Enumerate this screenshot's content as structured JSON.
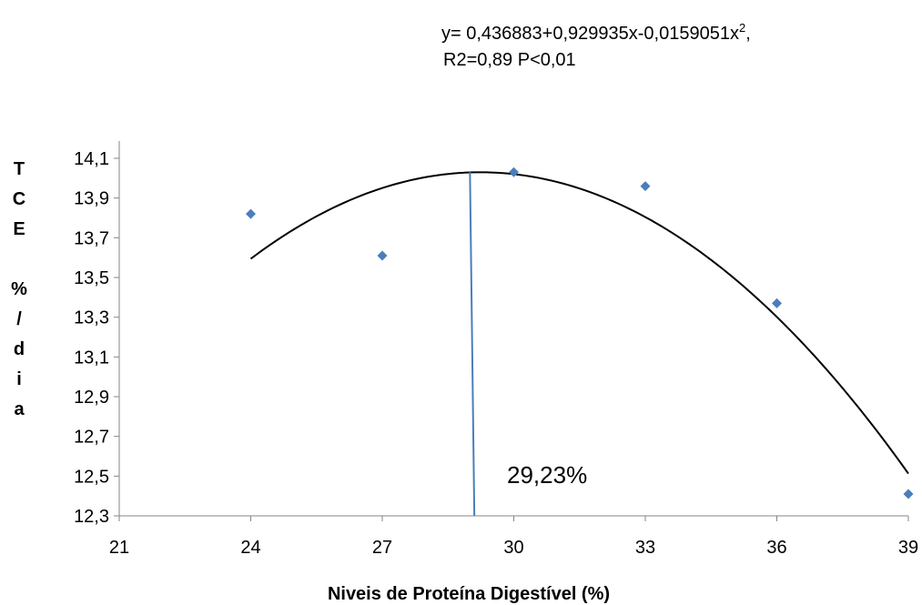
{
  "chart_data": {
    "type": "scatter",
    "equation_line1_prefix": "y= 0,436883+0,929935x-0,0159051x",
    "equation_line1_sup": "2",
    "equation_line1_suffix": ",",
    "equation_line2": "R2=0,89 P<0,01",
    "xlabel": "Niveis de Proteína Digestível (%)",
    "ylabel_chars": [
      "T",
      "C",
      "E",
      "",
      "%",
      "/",
      "d",
      "i",
      "a"
    ],
    "xlim": [
      21,
      39
    ],
    "ylim": [
      12.3,
      14.1
    ],
    "x_ticks": [
      21,
      24,
      27,
      30,
      33,
      36,
      39
    ],
    "x_tick_labels": [
      "21",
      "24",
      "27",
      "30",
      "33",
      "36",
      "39"
    ],
    "y_ticks": [
      12.3,
      12.5,
      12.7,
      12.9,
      13.1,
      13.3,
      13.5,
      13.7,
      13.9,
      14.1
    ],
    "y_tick_labels": [
      "12,3",
      "12,5",
      "12,7",
      "12,9",
      "13,1",
      "13,3",
      "13,5",
      "13,7",
      "13,9",
      "14,1"
    ],
    "series": [
      {
        "x": [
          24,
          27,
          30,
          33,
          36,
          39
        ],
        "y": [
          13.82,
          13.61,
          14.03,
          13.96,
          13.37,
          12.41
        ]
      }
    ],
    "trendline": {
      "x_range": [
        24,
        39
      ],
      "a": 0.436883,
      "b": 0.929935,
      "c": -0.0159051
    },
    "annotation": {
      "label": "29,23%",
      "line_top": [
        29.0,
        14.03
      ],
      "line_bottom": [
        29.1,
        12.3
      ]
    },
    "marker_color": "#4a7ebb",
    "line_color": "#000000",
    "vline_color": "#4a7ebb",
    "grid": false
  }
}
